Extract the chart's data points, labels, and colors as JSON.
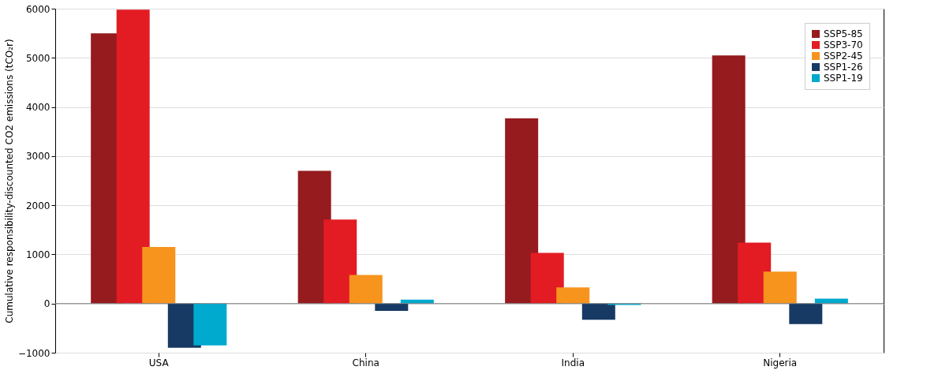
{
  "chart_data": {
    "type": "bar",
    "ylabel": "Cumulative responsibility-discounted CO2 emissions (tCO₂r)",
    "categories": [
      "USA",
      "China",
      "India",
      "Nigeria"
    ],
    "series": [
      {
        "name": "SSP5-85",
        "color": "#951b1e",
        "values": [
          5500,
          2700,
          3770,
          5050
        ]
      },
      {
        "name": "SSP3-70",
        "color": "#e31b23",
        "values": [
          5980,
          1710,
          1030,
          1240
        ]
      },
      {
        "name": "SSP2-45",
        "color": "#f7941d",
        "values": [
          1150,
          580,
          330,
          650
        ]
      },
      {
        "name": "SSP1-26",
        "color": "#173a64",
        "values": [
          -900,
          -150,
          -330,
          -420
        ]
      },
      {
        "name": "SSP1-19",
        "color": "#00a9ce",
        "values": [
          -850,
          80,
          -30,
          100
        ]
      }
    ],
    "ylim": [
      -1000,
      6000
    ],
    "yticks": [
      -1000,
      0,
      1000,
      2000,
      3000,
      4000,
      5000,
      6000
    ],
    "grid": "y",
    "legend": "top right",
    "ref_lines": [
      {
        "axis": "y",
        "value": 0,
        "color": "#808080"
      }
    ]
  }
}
